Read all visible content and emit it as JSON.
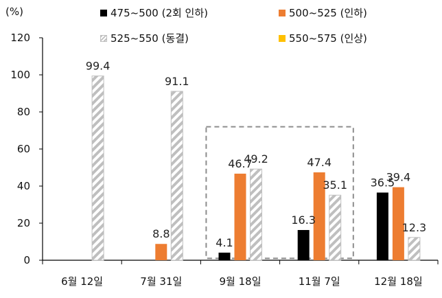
{
  "chart_data": {
    "type": "bar",
    "unit_label": "(%)",
    "categories": [
      "6월 12일",
      "7월 31일",
      "9월 18일",
      "11월 7일",
      "12월 18일"
    ],
    "series": [
      {
        "name": "475~500 (2회 인하)",
        "color": "#000000",
        "pattern": "solid",
        "values": [
          null,
          null,
          4.1,
          16.3,
          36.5
        ]
      },
      {
        "name": "500~525 (인하)",
        "color": "#ED7D31",
        "pattern": "solid",
        "values": [
          null,
          8.8,
          46.7,
          47.4,
          39.4
        ]
      },
      {
        "name": "525~550 (동결)",
        "color": "#BFBFBF",
        "pattern": "hatched",
        "values": [
          99.4,
          91.1,
          49.2,
          35.1,
          12.3
        ]
      },
      {
        "name": "550~575 (인상)",
        "color": "#FFC000",
        "pattern": "solid",
        "values": [
          null,
          null,
          null,
          null,
          null
        ]
      }
    ],
    "ylim": [
      0,
      120
    ],
    "yticks": [
      "0",
      "20",
      "40",
      "60",
      "80",
      "100",
      "120"
    ],
    "highlight": {
      "categories": [
        "9월 18일",
        "11월 7일"
      ],
      "style": "dashed-box"
    },
    "legend_position": "top"
  }
}
